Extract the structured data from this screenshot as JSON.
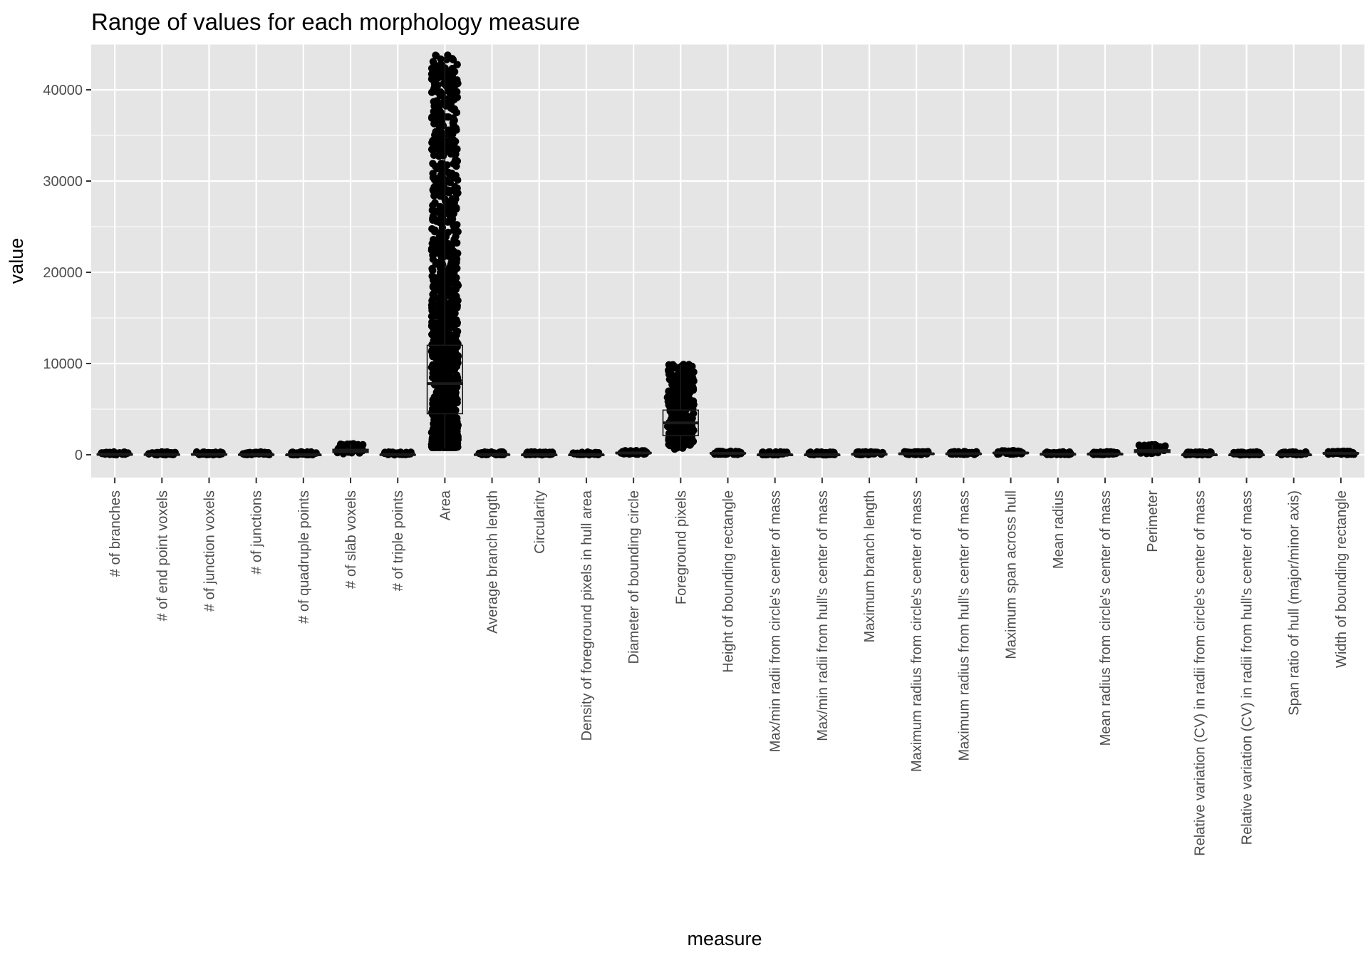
{
  "chart_data": {
    "type": "boxplot",
    "title": "Range of values for each morphology measure",
    "xlabel": "measure",
    "ylabel": "value",
    "ylim": [
      -2500,
      45000
    ],
    "yticks": [
      0,
      10000,
      20000,
      30000,
      40000
    ],
    "grid": true,
    "legend": "none",
    "colors": {
      "panel": "#e5e5e5",
      "grid": "#ffffff",
      "points": "#000000",
      "box": "#1a1a1a"
    },
    "categories": [
      "# of branches",
      "# of end point voxels",
      "# of junction voxels",
      "# of junctions",
      "# of quadruple points",
      "# of slab voxels",
      "# of triple points",
      "Area",
      "Average branch length",
      "Circularity",
      "Density of foreground pixels in hull area",
      "Diameter of bounding circle",
      "Foreground pixels",
      "Height of bounding rectangle",
      "Max/min radii from circle's center of mass",
      "Max/min radii from hull's center of mass",
      "Maximum branch length",
      "Maximum radius from circle's center of mass",
      "Maximum radius from hull's center of mass",
      "Maximum span across hull",
      "Mean radius",
      "Mean radius from circle's center of mass",
      "Perimeter",
      "Relative variation (CV) in radii from circle's center of mass",
      "Relative variation (CV) in radii from hull's center of mass",
      "Span ratio of hull (major/minor axis)",
      "Width of bounding rectangle"
    ],
    "boxes": [
      {
        "q1": 20,
        "median": 40,
        "q3": 70,
        "min": 0,
        "max": 160
      },
      {
        "q1": 10,
        "median": 25,
        "q3": 40,
        "min": 0,
        "max": 110
      },
      {
        "q1": 20,
        "median": 40,
        "q3": 70,
        "min": 0,
        "max": 190
      },
      {
        "q1": 10,
        "median": 20,
        "q3": 35,
        "min": 0,
        "max": 90
      },
      {
        "q1": 0,
        "median": 1,
        "q3": 2,
        "min": 0,
        "max": 15
      },
      {
        "q1": 250,
        "median": 400,
        "q3": 600,
        "min": 50,
        "max": 1200
      },
      {
        "q1": 8,
        "median": 15,
        "q3": 28,
        "min": 0,
        "max": 80
      },
      {
        "q1": 4500,
        "median": 7800,
        "q3": 12000,
        "min": 800,
        "max": 43800
      },
      {
        "q1": 15,
        "median": 20,
        "q3": 28,
        "min": 5,
        "max": 80
      },
      {
        "q1": 0.2,
        "median": 0.4,
        "q3": 0.6,
        "min": 0,
        "max": 1
      },
      {
        "q1": 0.2,
        "median": 0.3,
        "q3": 0.4,
        "min": 0,
        "max": 1
      },
      {
        "q1": 150,
        "median": 200,
        "q3": 260,
        "min": 60,
        "max": 450
      },
      {
        "q1": 2100,
        "median": 3500,
        "q3": 4900,
        "min": 600,
        "max": 9900
      },
      {
        "q1": 120,
        "median": 160,
        "q3": 210,
        "min": 40,
        "max": 380
      },
      {
        "q1": 1.5,
        "median": 2,
        "q3": 2.8,
        "min": 1,
        "max": 10
      },
      {
        "q1": 1.5,
        "median": 2,
        "q3": 2.8,
        "min": 1,
        "max": 10
      },
      {
        "q1": 40,
        "median": 60,
        "q3": 85,
        "min": 10,
        "max": 200
      },
      {
        "q1": 80,
        "median": 110,
        "q3": 140,
        "min": 30,
        "max": 260
      },
      {
        "q1": 80,
        "median": 110,
        "q3": 140,
        "min": 30,
        "max": 260
      },
      {
        "q1": 150,
        "median": 200,
        "q3": 260,
        "min": 60,
        "max": 450
      },
      {
        "q1": 45,
        "median": 60,
        "q3": 80,
        "min": 15,
        "max": 150
      },
      {
        "q1": 55,
        "median": 75,
        "q3": 95,
        "min": 20,
        "max": 170
      },
      {
        "q1": 250,
        "median": 380,
        "q3": 550,
        "min": 100,
        "max": 1100
      },
      {
        "q1": 0.2,
        "median": 0.3,
        "q3": 0.4,
        "min": 0,
        "max": 1
      },
      {
        "q1": 0.2,
        "median": 0.3,
        "q3": 0.4,
        "min": 0,
        "max": 1
      },
      {
        "q1": 1.3,
        "median": 1.6,
        "q3": 2,
        "min": 1,
        "max": 5
      },
      {
        "q1": 120,
        "median": 160,
        "q3": 210,
        "min": 40,
        "max": 380
      }
    ]
  }
}
